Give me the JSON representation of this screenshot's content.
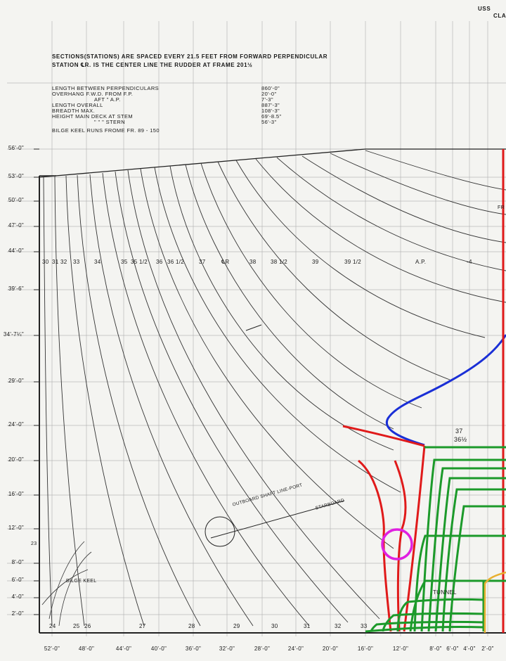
{
  "header": {
    "corner_ship": "USS",
    "corner_class": "CLA",
    "note_line1": "SECTIONS(STATIONS) ARE SPACED EVERY 21.5 FEET FROM FORWARD PERPENDICULAR",
    "note_line2": "STATION ℄R. IS THE CENTER LINE THE RUDDER AT FRAME 201½"
  },
  "specs": {
    "row1": "LENGTH BETWEEN PERPENDICULARS",
    "row1_val": "860'-0\"",
    "row2": "OVERHANG F.W.D. FROM F.P.",
    "row2_val": "20'-0\"",
    "row3": "AFT \" A.P.",
    "row3_val": "7'-3\"",
    "row4": "LENGTH OVERALL",
    "row4_val": "887'-3\"",
    "row5": "BREADTH MAX.",
    "row5_val": "108'-3\"",
    "row6": "HEIGHT MAIN DECK AT STEM",
    "row6_val": "69'-8.5\"",
    "row7": "\" \" \" STERN",
    "row7_val": "56'-3\"",
    "row8": "BILGE KEEL RUNS FROME FR. 89 - 150"
  },
  "y_axis": [
    "56'-0\"",
    "53'-0\"",
    "50'-0\"",
    "47'-0\"",
    "44'-0\"",
    "39'-6\"",
    "34'-7¼\"",
    "29'-0\"",
    "24'-0\"",
    "20'-0\"",
    "16'-0\"",
    "12'-0\"",
    "8'-0\"",
    "6'-0\"",
    "4'-0\"",
    "2'-0\""
  ],
  "x_axis": [
    "52'-0\"",
    "48'-0\"",
    "44'-0\"",
    "40'-0\"",
    "36'-0\"",
    "32'-0\"",
    "28'-0\"",
    "24'-0\"",
    "20'-0\"",
    "16'-0\"",
    "12'-0\"",
    "8'-0\"",
    "6'-0\"",
    "4'-0\"",
    "2'-0\""
  ],
  "upper_stations": [
    "30",
    "31",
    "32",
    "33",
    "34",
    "35",
    "35 1/2",
    "36",
    "36 1/2",
    "37",
    "℄R",
    "38",
    "38 1/2",
    "39",
    "39 1/2",
    "A.P.",
    "-4"
  ],
  "lower_stations": [
    "24",
    "25",
    "26",
    "27",
    "28",
    "29",
    "30",
    "31",
    "32",
    "33"
  ],
  "labels": {
    "shaft": "OUTBOARD SHAFT LINE-PORT",
    "shaft2": "STARBOARD",
    "bilge_keel": "BILGE KEEL",
    "tunnel": "TUNNEL",
    "st37": "37",
    "st36h": "36½",
    "left23": "23",
    "right_fr": "FR"
  },
  "colors": {
    "ink": "#222222",
    "grid": "#b5b5b5",
    "blue": "#1a2fd6",
    "red": "#e01a1a",
    "green": "#1c9a2a",
    "magenta": "#e020e0",
    "orange": "#e8b030"
  }
}
